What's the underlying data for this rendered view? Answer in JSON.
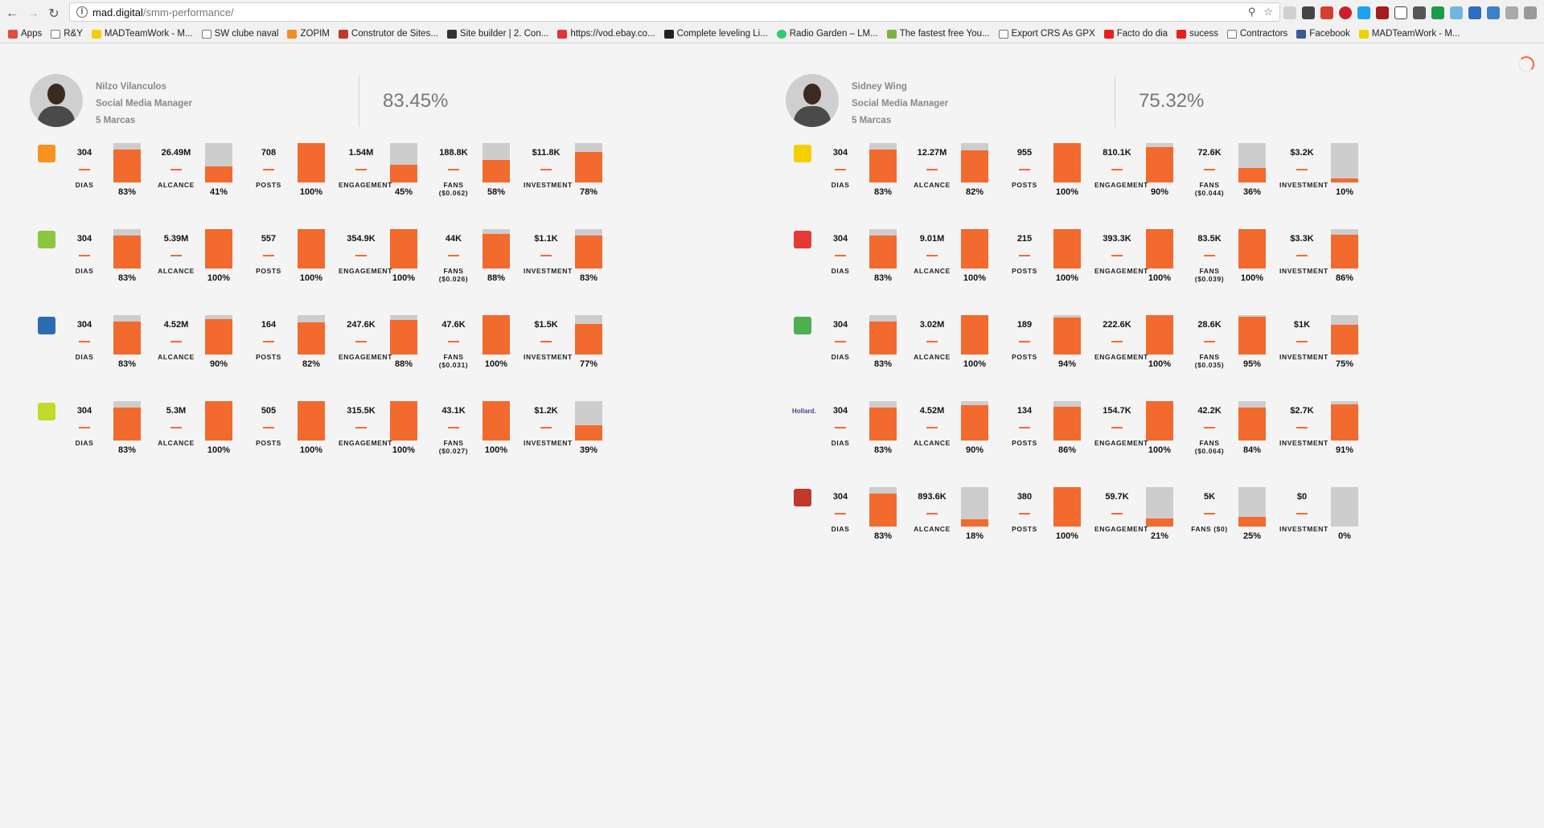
{
  "browser": {
    "url_host": "mad.digital",
    "url_path": "/smm-performance/",
    "bookmarks": [
      "Apps",
      "R&Y",
      "MADTeamWork - M...",
      "SW clube naval",
      "ZOPIM",
      "Construtor de Sites...",
      "Site builder | 2. Con...",
      "https://vod.ebay.co...",
      "Complete leveling Li...",
      "Radio Garden – LM...",
      "The fastest free You...",
      "Export CRS As GPX",
      "Facto do dia",
      "sucess",
      "Contractors",
      "Facebook",
      "MADTeamWork - M..."
    ]
  },
  "labels": {
    "dias": "DIAS",
    "alcance": "ALCANCE",
    "posts": "POSTS",
    "engagement": "ENGAGEMENT",
    "investment": "INVESTMENT"
  },
  "colors": {
    "accent": "#f26a2e",
    "bar_bg": "#cdcdcd"
  },
  "managers": [
    {
      "name": "Nilzo Vilanculos",
      "role": "Social Media Manager",
      "brands_count": "5 Marcas",
      "score": "83.45%",
      "brands": [
        {
          "logo": "orange-square-logo",
          "logo_color": "#f7931e",
          "dias": "304",
          "dias_pct": "83%",
          "dias_v": 0.83,
          "alcance": "26.49M",
          "alcance_pct": "41%",
          "alcance_v": 0.41,
          "posts": "708",
          "posts_pct": "100%",
          "posts_v": 1.0,
          "engagement": "1.54M",
          "engagement_pct": "45%",
          "engagement_v": 0.45,
          "fans": "188.8K",
          "fans_label": "FANS ($0.062)",
          "fans_pct": "58%",
          "fans_v": 0.58,
          "investment": "$11.8K",
          "investment_pct": "78%",
          "investment_v": 0.78
        },
        {
          "logo": "green-leaf-logo",
          "logo_color": "#8cc63f",
          "dias": "304",
          "dias_pct": "83%",
          "dias_v": 0.83,
          "alcance": "5.39M",
          "alcance_pct": "100%",
          "alcance_v": 1.0,
          "posts": "557",
          "posts_pct": "100%",
          "posts_v": 1.0,
          "engagement": "354.9K",
          "engagement_pct": "100%",
          "engagement_v": 1.0,
          "fans": "44K",
          "fans_label": "FANS ($0.026)",
          "fans_pct": "88%",
          "fans_v": 0.88,
          "investment": "$1.1K",
          "investment_pct": "83%",
          "investment_v": 0.83
        },
        {
          "logo": "blue-oval-logo",
          "logo_color": "#2b6cb0",
          "dias": "304",
          "dias_pct": "83%",
          "dias_v": 0.83,
          "alcance": "4.52M",
          "alcance_pct": "90%",
          "alcance_v": 0.9,
          "posts": "164",
          "posts_pct": "82%",
          "posts_v": 0.82,
          "engagement": "247.6K",
          "engagement_pct": "88%",
          "engagement_v": 0.88,
          "fans": "47.6K",
          "fans_label": "FANS ($0.031)",
          "fans_pct": "100%",
          "fans_v": 1.0,
          "investment": "$1.5K",
          "investment_pct": "77%",
          "investment_v": 0.77
        },
        {
          "logo": "froot-logo",
          "logo_color": "#c5d928",
          "dias": "304",
          "dias_pct": "83%",
          "dias_v": 0.83,
          "alcance": "5.3M",
          "alcance_pct": "100%",
          "alcance_v": 1.0,
          "posts": "505",
          "posts_pct": "100%",
          "posts_v": 1.0,
          "engagement": "315.5K",
          "engagement_pct": "100%",
          "engagement_v": 1.0,
          "fans": "43.1K",
          "fans_label": "FANS ($0.027)",
          "fans_pct": "100%",
          "fans_v": 1.0,
          "investment": "$1.2K",
          "investment_pct": "39%",
          "investment_v": 0.39
        }
      ]
    },
    {
      "name": "Sidney Wing",
      "role": "Social Media Manager",
      "brands_count": "5 Marcas",
      "score": "75.32%",
      "brands": [
        {
          "logo": "yellow-green-logo",
          "logo_color": "#f5d000",
          "dias": "304",
          "dias_pct": "83%",
          "dias_v": 0.83,
          "alcance": "12.27M",
          "alcance_pct": "82%",
          "alcance_v": 0.82,
          "posts": "955",
          "posts_pct": "100%",
          "posts_v": 1.0,
          "engagement": "810.1K",
          "engagement_pct": "90%",
          "engagement_v": 0.9,
          "fans": "72.6K",
          "fans_label": "FANS ($0.044)",
          "fans_pct": "36%",
          "fans_v": 0.36,
          "investment": "$3.2K",
          "investment_pct": "10%",
          "investment_v": 0.1
        },
        {
          "logo": "red-dots-logo",
          "logo_color": "#e53935",
          "dias": "304",
          "dias_pct": "83%",
          "dias_v": 0.83,
          "alcance": "9.01M",
          "alcance_pct": "100%",
          "alcance_v": 1.0,
          "posts": "215",
          "posts_pct": "100%",
          "posts_v": 1.0,
          "engagement": "393.3K",
          "engagement_pct": "100%",
          "engagement_v": 1.0,
          "fans": "83.5K",
          "fans_label": "FANS ($0.039)",
          "fans_pct": "100%",
          "fans_v": 1.0,
          "investment": "$3.3K",
          "investment_pct": "86%",
          "investment_v": 0.86
        },
        {
          "logo": "green-bottle-logo",
          "logo_color": "#4caf50",
          "dias": "304",
          "dias_pct": "83%",
          "dias_v": 0.83,
          "alcance": "3.02M",
          "alcance_pct": "100%",
          "alcance_v": 1.0,
          "posts": "189",
          "posts_pct": "94%",
          "posts_v": 0.94,
          "engagement": "222.6K",
          "engagement_pct": "100%",
          "engagement_v": 1.0,
          "fans": "28.6K",
          "fans_label": "FANS ($0.035)",
          "fans_pct": "95%",
          "fans_v": 0.95,
          "investment": "$1K",
          "investment_pct": "75%",
          "investment_v": 0.75
        },
        {
          "logo": "hollard-logo",
          "logo_text": "Hollard.",
          "logo_color": "#4a3f8f",
          "dias": "304",
          "dias_pct": "83%",
          "dias_v": 0.83,
          "alcance": "4.52M",
          "alcance_pct": "90%",
          "alcance_v": 0.9,
          "posts": "134",
          "posts_pct": "86%",
          "posts_v": 0.86,
          "engagement": "154.7K",
          "engagement_pct": "100%",
          "engagement_v": 1.0,
          "fans": "42.2K",
          "fans_label": "FANS ($0.064)",
          "fans_pct": "84%",
          "fans_v": 0.84,
          "investment": "$2.7K",
          "investment_pct": "91%",
          "investment_v": 0.91
        },
        {
          "logo": "emblem-logo",
          "logo_color": "#c0392b",
          "dias": "304",
          "dias_pct": "83%",
          "dias_v": 0.83,
          "alcance": "893.6K",
          "alcance_pct": "18%",
          "alcance_v": 0.18,
          "posts": "380",
          "posts_pct": "100%",
          "posts_v": 1.0,
          "engagement": "59.7K",
          "engagement_pct": "21%",
          "engagement_v": 0.21,
          "fans": "5K",
          "fans_label": "FANS ($0)",
          "fans_pct": "25%",
          "fans_v": 0.25,
          "investment": "$0",
          "investment_pct": "0%",
          "investment_v": 0.0
        }
      ]
    }
  ]
}
